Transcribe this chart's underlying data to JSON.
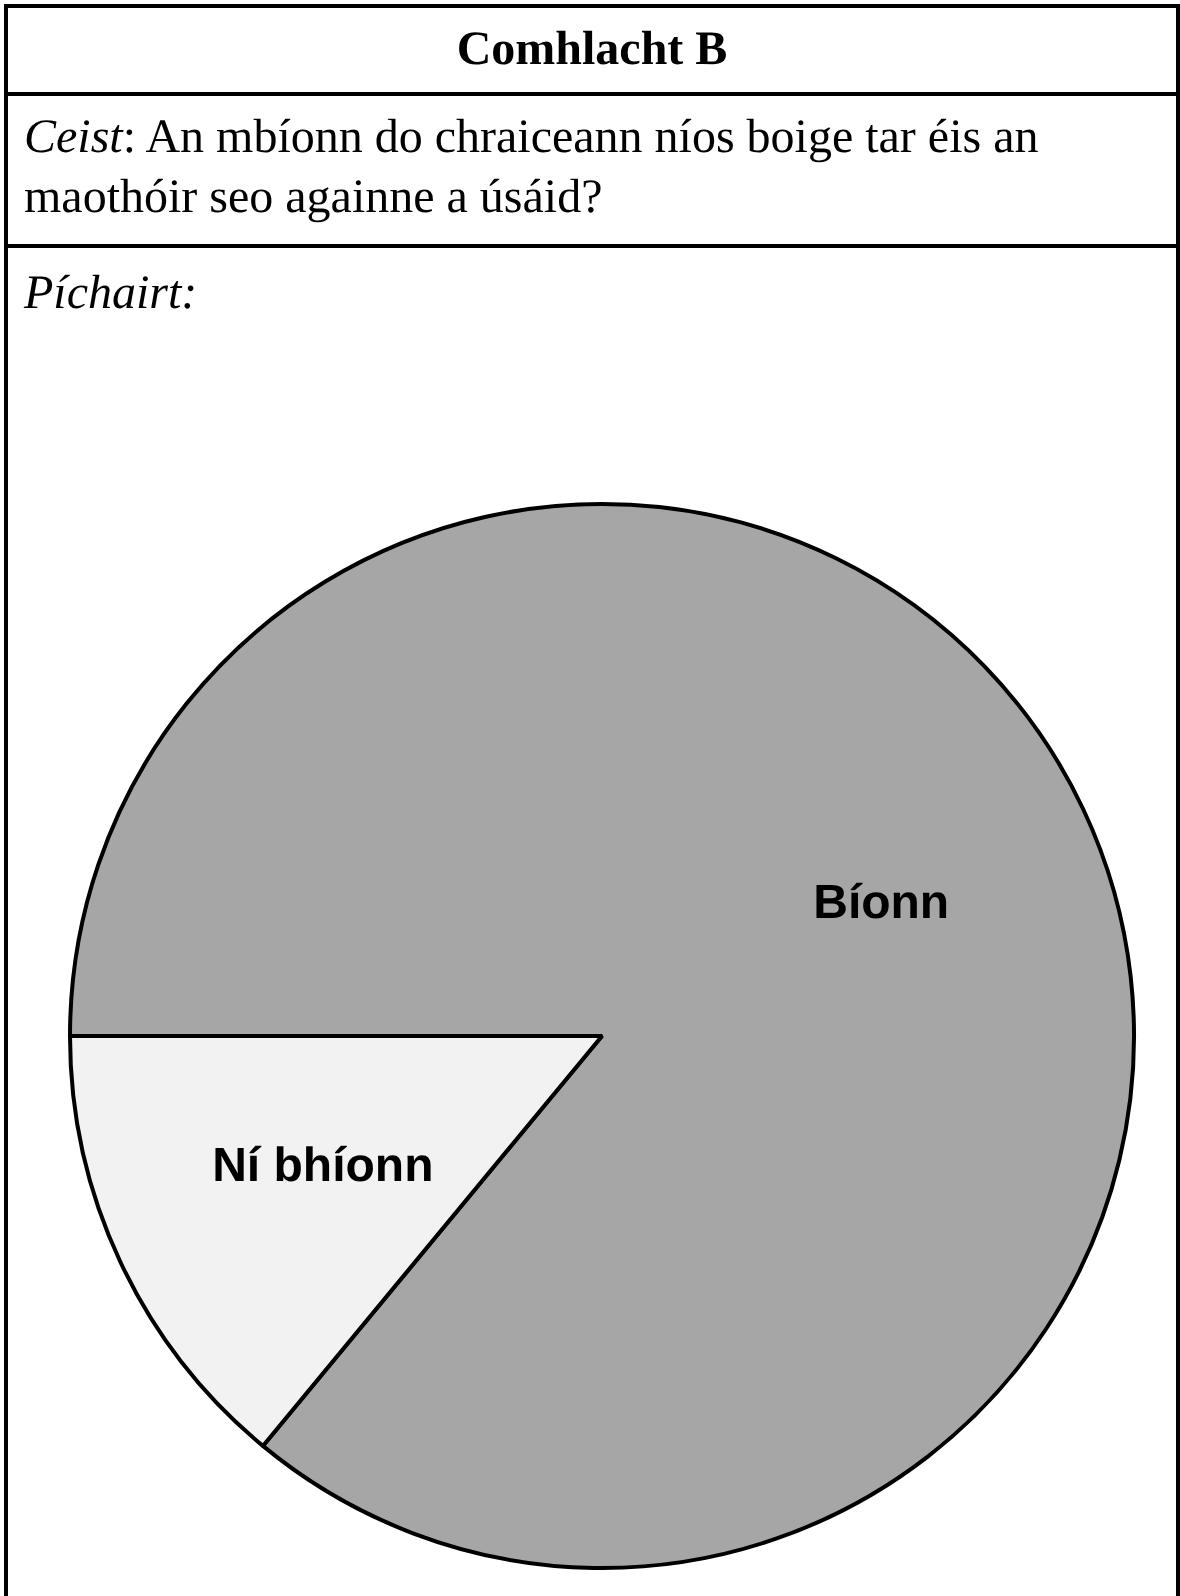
{
  "chart_data": {
    "type": "pie",
    "title": "Comhlacht B",
    "subtitle": "Ceist: An mbíonn do chraiceann níos boige tar éis an maothóir seo againne a úsáid?",
    "annotations": [
      "Píchairt:"
    ],
    "categories": [
      "Bíonn",
      "Ní bhíonn"
    ],
    "values": [
      86,
      14
    ],
    "colors": [
      "#a6a6a6",
      "#f2f2f2"
    ],
    "legend": false
  }
}
